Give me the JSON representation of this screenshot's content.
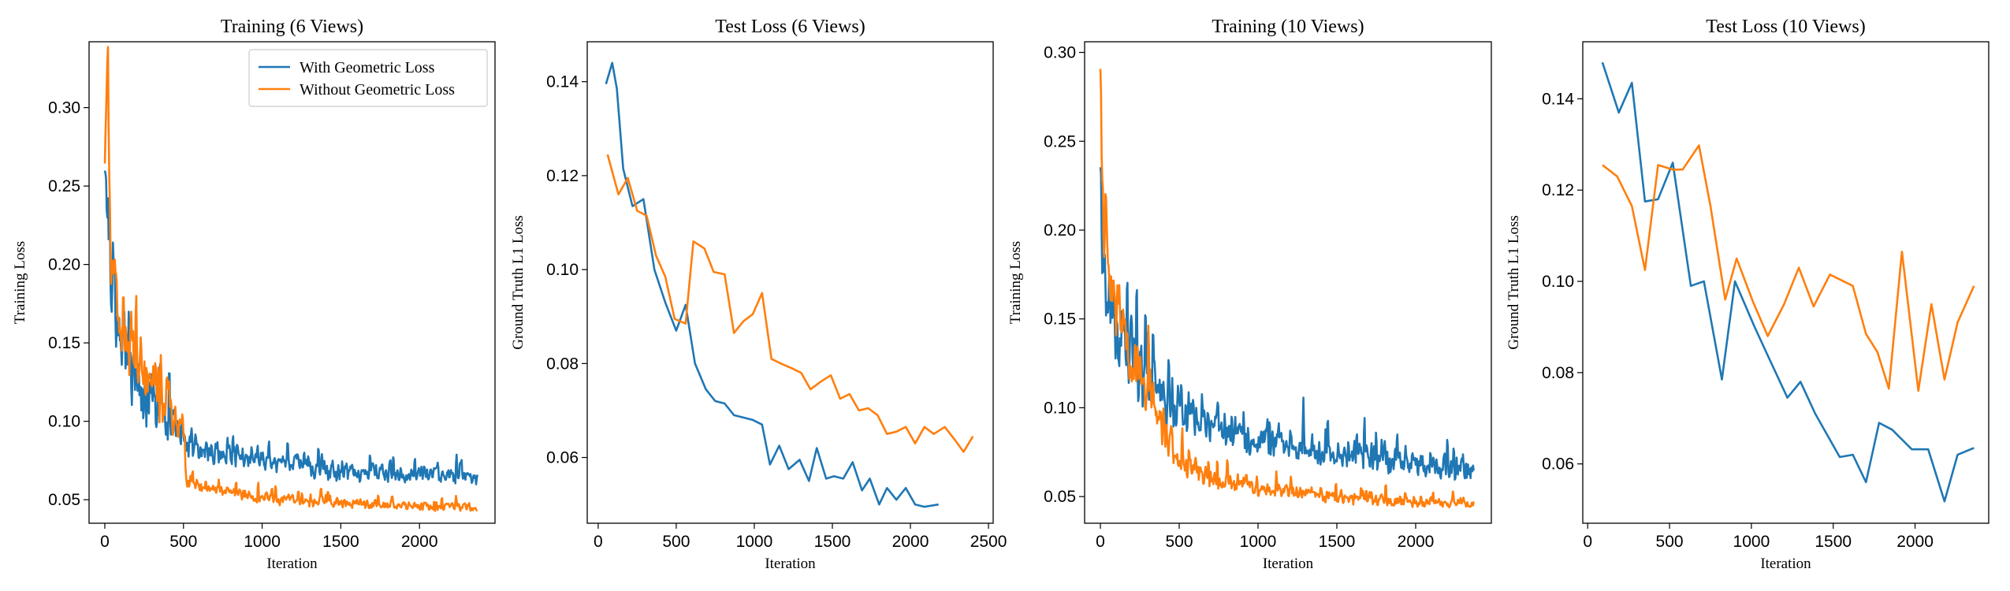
{
  "colors": {
    "with_geometric": "#1f77b4",
    "without_geometric": "#ff7f0e"
  },
  "legend": {
    "panel": 0,
    "placement": "top-right",
    "entries": [
      "With Geometric Loss",
      "Without Geometric Loss"
    ]
  },
  "chart_data": [
    {
      "type": "line",
      "title": "Training (6 Views)",
      "xlabel": "Iteration",
      "ylabel": "Training Loss",
      "xlim": [
        -100,
        2480
      ],
      "ylim": [
        0.035,
        0.342
      ],
      "xticks": [
        0,
        500,
        1000,
        1500,
        2000
      ],
      "yticks": [
        0.05,
        0.1,
        0.15,
        0.2,
        0.25,
        0.3
      ],
      "ytick_labels": [
        "0.05",
        "0.10",
        "0.15",
        "0.20",
        "0.25",
        "0.30"
      ],
      "grid": false,
      "series": [
        {
          "name": "With Geometric Loss",
          "noise": true,
          "x_end": 2370,
          "base": [
            [
              0,
              0.25
            ],
            [
              30,
              0.2
            ],
            [
              80,
              0.16
            ],
            [
              150,
              0.14
            ],
            [
              250,
              0.12
            ],
            [
              400,
              0.1
            ],
            [
              500,
              0.088
            ],
            [
              700,
              0.08
            ],
            [
              1000,
              0.075
            ],
            [
              1500,
              0.068
            ],
            [
              2000,
              0.066
            ],
            [
              2370,
              0.065
            ]
          ],
          "jitter": [
            [
              0,
              0.045
            ],
            [
              300,
              0.03
            ],
            [
              500,
              0.016
            ],
            [
              1000,
              0.01
            ],
            [
              2370,
              0.008
            ]
          ]
        },
        {
          "name": "Without Geometric Loss",
          "noise": true,
          "x_end": 2370,
          "base": [
            [
              0,
              0.255
            ],
            [
              20,
              0.32
            ],
            [
              40,
              0.2
            ],
            [
              100,
              0.16
            ],
            [
              250,
              0.13
            ],
            [
              400,
              0.11
            ],
            [
              480,
              0.1
            ],
            [
              520,
              0.062
            ],
            [
              700,
              0.056
            ],
            [
              1000,
              0.051
            ],
            [
              1500,
              0.048
            ],
            [
              2000,
              0.046
            ],
            [
              2370,
              0.045
            ]
          ],
          "jitter": [
            [
              0,
              0.04
            ],
            [
              300,
              0.03
            ],
            [
              480,
              0.025
            ],
            [
              520,
              0.006
            ],
            [
              2370,
              0.004
            ]
          ]
        }
      ]
    },
    {
      "type": "line",
      "title": "Test Loss (6 Views)",
      "xlabel": "Iteration",
      "ylabel": "Ground Truth L1 Loss",
      "xlim": [
        -70,
        2530
      ],
      "ylim": [
        0.046,
        0.1485
      ],
      "xticks": [
        0,
        500,
        1000,
        1500,
        2000,
        2500
      ],
      "yticks": [
        0.06,
        0.08,
        0.1,
        0.12,
        0.14
      ],
      "ytick_labels": [
        "0.06",
        "0.08",
        "0.10",
        "0.12",
        "0.14"
      ],
      "grid": false,
      "series": [
        {
          "name": "With Geometric Loss",
          "points": [
            [
              50,
              0.1395
            ],
            [
              90,
              0.144
            ],
            [
              120,
              0.1385
            ],
            [
              160,
              0.1215
            ],
            [
              220,
              0.1135
            ],
            [
              290,
              0.115
            ],
            [
              360,
              0.1
            ],
            [
              430,
              0.093
            ],
            [
              500,
              0.087
            ],
            [
              560,
              0.0925
            ],
            [
              620,
              0.08
            ],
            [
              690,
              0.0745
            ],
            [
              750,
              0.072
            ],
            [
              810,
              0.0715
            ],
            [
              870,
              0.069
            ],
            [
              930,
              0.0685
            ],
            [
              990,
              0.068
            ],
            [
              1050,
              0.067
            ],
            [
              1100,
              0.0585
            ],
            [
              1160,
              0.0625
            ],
            [
              1220,
              0.0575
            ],
            [
              1290,
              0.0595
            ],
            [
              1350,
              0.055
            ],
            [
              1400,
              0.062
            ],
            [
              1460,
              0.0555
            ],
            [
              1510,
              0.056
            ],
            [
              1570,
              0.0555
            ],
            [
              1630,
              0.059
            ],
            [
              1690,
              0.053
            ],
            [
              1740,
              0.0555
            ],
            [
              1800,
              0.05
            ],
            [
              1850,
              0.0535
            ],
            [
              1910,
              0.051
            ],
            [
              1970,
              0.0535
            ],
            [
              2030,
              0.05
            ],
            [
              2090,
              0.0495
            ],
            [
              2180,
              0.05
            ]
          ]
        },
        {
          "name": "Without Geometric Loss",
          "points": [
            [
              60,
              0.1245
            ],
            [
              130,
              0.116
            ],
            [
              190,
              0.1195
            ],
            [
              250,
              0.1125
            ],
            [
              310,
              0.1115
            ],
            [
              370,
              0.103
            ],
            [
              430,
              0.0985
            ],
            [
              490,
              0.0895
            ],
            [
              560,
              0.0885
            ],
            [
              610,
              0.106
            ],
            [
              680,
              0.1045
            ],
            [
              740,
              0.0995
            ],
            [
              810,
              0.099
            ],
            [
              870,
              0.0865
            ],
            [
              930,
              0.089
            ],
            [
              990,
              0.0905
            ],
            [
              1050,
              0.095
            ],
            [
              1110,
              0.081
            ],
            [
              1170,
              0.08
            ],
            [
              1240,
              0.079
            ],
            [
              1300,
              0.078
            ],
            [
              1360,
              0.0745
            ],
            [
              1420,
              0.076
            ],
            [
              1490,
              0.0775
            ],
            [
              1550,
              0.0725
            ],
            [
              1610,
              0.0735
            ],
            [
              1670,
              0.07
            ],
            [
              1730,
              0.0705
            ],
            [
              1790,
              0.069
            ],
            [
              1850,
              0.065
            ],
            [
              1910,
              0.0655
            ],
            [
              1970,
              0.0665
            ],
            [
              2030,
              0.063
            ],
            [
              2090,
              0.0665
            ],
            [
              2150,
              0.065
            ],
            [
              2220,
              0.0665
            ],
            [
              2290,
              0.0635
            ],
            [
              2340,
              0.0612
            ],
            [
              2400,
              0.0645
            ]
          ]
        }
      ]
    },
    {
      "type": "line",
      "title": "Training (10 Views)",
      "xlabel": "Iteration",
      "ylabel": "Training Loss",
      "xlim": [
        -100,
        2480
      ],
      "ylim": [
        0.035,
        0.306
      ],
      "xticks": [
        0,
        500,
        1000,
        1500,
        2000
      ],
      "yticks": [
        0.05,
        0.1,
        0.15,
        0.2,
        0.25,
        0.3
      ],
      "ytick_labels": [
        "0.05",
        "0.10",
        "0.15",
        "0.20",
        "0.25",
        "0.30"
      ],
      "grid": false,
      "series": [
        {
          "name": "With Geometric Loss",
          "noise": true,
          "x_end": 2370,
          "base": [
            [
              0,
              0.22
            ],
            [
              30,
              0.17
            ],
            [
              100,
              0.14
            ],
            [
              250,
              0.12
            ],
            [
              500,
              0.1
            ],
            [
              700,
              0.09
            ],
            [
              1000,
              0.082
            ],
            [
              1500,
              0.075
            ],
            [
              2000,
              0.068
            ],
            [
              2370,
              0.065
            ]
          ],
          "jitter": [
            [
              0,
              0.045
            ],
            [
              300,
              0.028
            ],
            [
              600,
              0.018
            ],
            [
              1000,
              0.013
            ],
            [
              2370,
              0.011
            ]
          ]
        },
        {
          "name": "Without Geometric Loss",
          "noise": true,
          "x_end": 2370,
          "base": [
            [
              0,
              0.28
            ],
            [
              20,
              0.2
            ],
            [
              80,
              0.16
            ],
            [
              200,
              0.125
            ],
            [
              350,
              0.1
            ],
            [
              500,
              0.07
            ],
            [
              700,
              0.06
            ],
            [
              1000,
              0.055
            ],
            [
              1500,
              0.05
            ],
            [
              2000,
              0.047
            ],
            [
              2370,
              0.046
            ]
          ],
          "jitter": [
            [
              0,
              0.03
            ],
            [
              300,
              0.025
            ],
            [
              500,
              0.012
            ],
            [
              1000,
              0.007
            ],
            [
              2370,
              0.004
            ]
          ]
        }
      ]
    },
    {
      "type": "line",
      "title": "Test Loss (10 Views)",
      "xlabel": "Iteration",
      "ylabel": "Ground Truth L1 Loss",
      "xlim": [
        -30,
        2450
      ],
      "ylim": [
        0.047,
        0.1525
      ],
      "xticks": [
        0,
        500,
        1000,
        1500,
        2000
      ],
      "yticks": [
        0.06,
        0.08,
        0.1,
        0.12,
        0.14
      ],
      "ytick_labels": [
        "0.06",
        "0.08",
        "0.10",
        "0.12",
        "0.14"
      ],
      "grid": false,
      "series": [
        {
          "name": "With Geometric Loss",
          "points": [
            [
              90,
              0.148
            ],
            [
              190,
              0.137
            ],
            [
              270,
              0.1435
            ],
            [
              350,
              0.1175
            ],
            [
              430,
              0.118
            ],
            [
              520,
              0.126
            ],
            [
              630,
              0.099
            ],
            [
              710,
              0.1
            ],
            [
              820,
              0.0785
            ],
            [
              900,
              0.1
            ],
            [
              1020,
              0.09
            ],
            [
              1110,
              0.083
            ],
            [
              1220,
              0.0745
            ],
            [
              1300,
              0.078
            ],
            [
              1390,
              0.071
            ],
            [
              1540,
              0.0615
            ],
            [
              1620,
              0.062
            ],
            [
              1700,
              0.056
            ],
            [
              1780,
              0.069
            ],
            [
              1860,
              0.0675
            ],
            [
              1980,
              0.0632
            ],
            [
              2080,
              0.0632
            ],
            [
              2180,
              0.0518
            ],
            [
              2260,
              0.062
            ],
            [
              2360,
              0.0635
            ]
          ]
        },
        {
          "name": "Without Geometric Loss",
          "points": [
            [
              90,
              0.1255
            ],
            [
              180,
              0.123
            ],
            [
              270,
              0.1165
            ],
            [
              350,
              0.1025
            ],
            [
              430,
              0.1255
            ],
            [
              520,
              0.1245
            ],
            [
              580,
              0.1245
            ],
            [
              680,
              0.1298
            ],
            [
              750,
              0.1165
            ],
            [
              840,
              0.096
            ],
            [
              910,
              0.105
            ],
            [
              1010,
              0.0955
            ],
            [
              1100,
              0.088
            ],
            [
              1200,
              0.095
            ],
            [
              1290,
              0.103
            ],
            [
              1380,
              0.0945
            ],
            [
              1480,
              0.1015
            ],
            [
              1620,
              0.099
            ],
            [
              1700,
              0.0885
            ],
            [
              1770,
              0.0845
            ],
            [
              1840,
              0.0765
            ],
            [
              1920,
              0.1065
            ],
            [
              2020,
              0.076
            ],
            [
              2100,
              0.095
            ],
            [
              2180,
              0.0785
            ],
            [
              2260,
              0.091
            ],
            [
              2360,
              0.099
            ]
          ]
        }
      ]
    }
  ]
}
